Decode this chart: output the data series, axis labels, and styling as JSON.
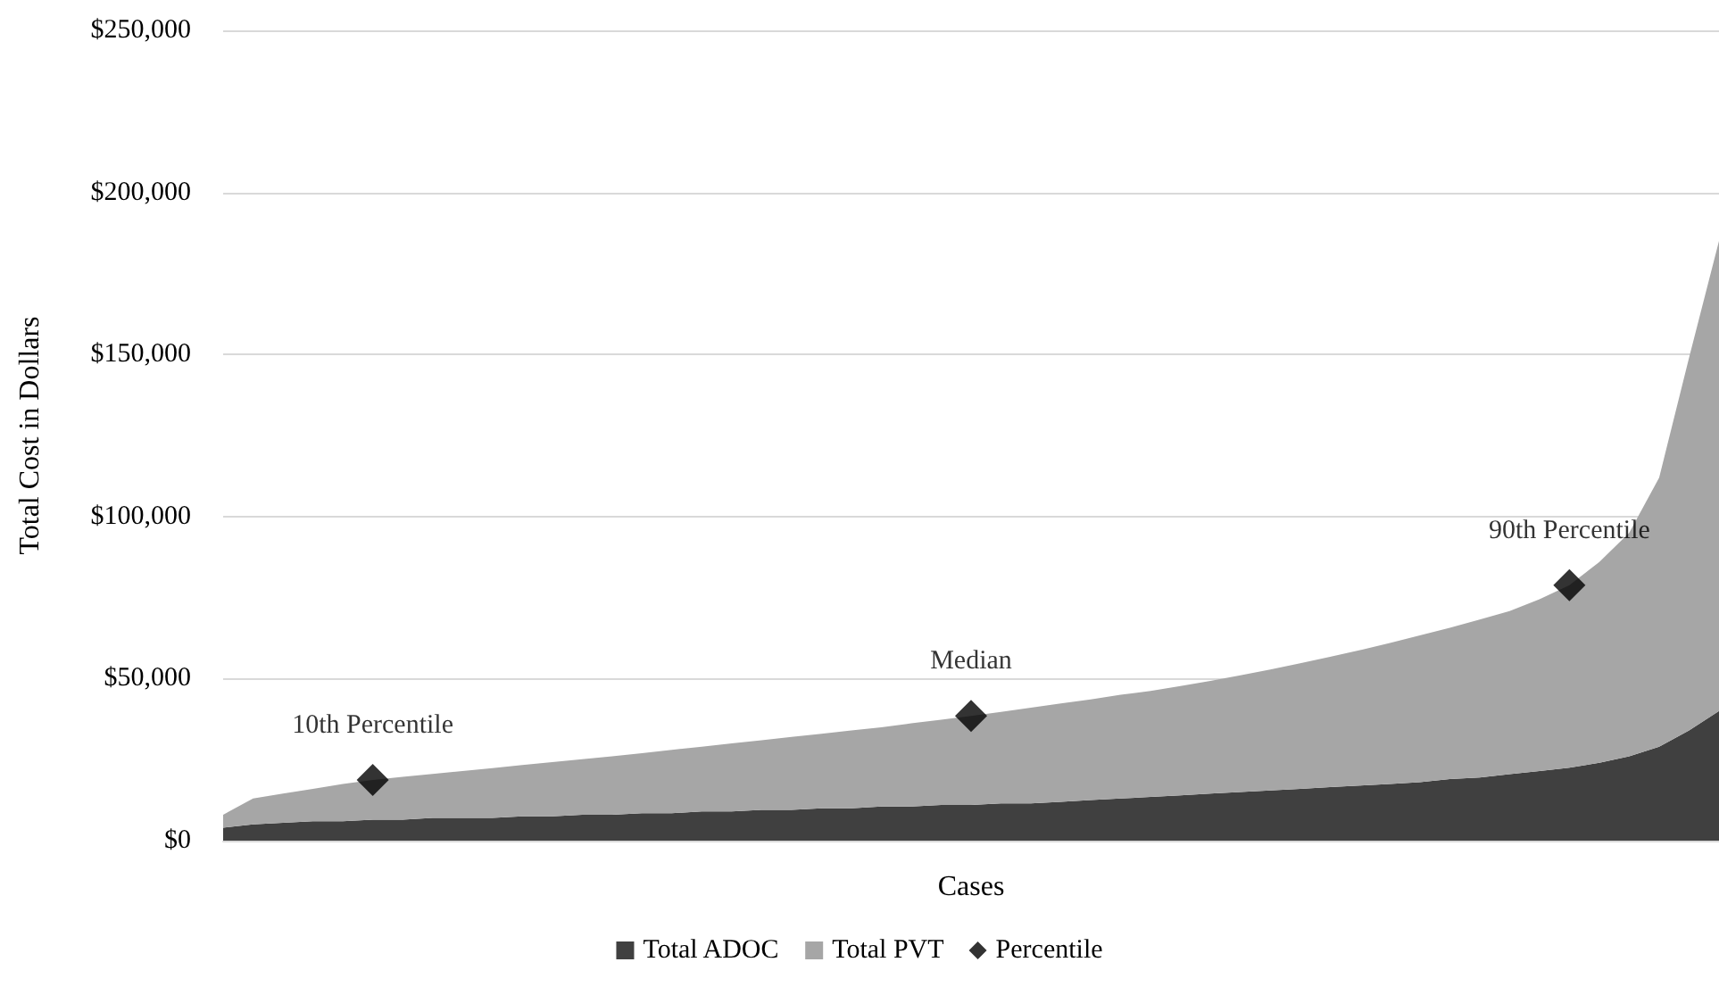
{
  "chart_data": {
    "type": "area",
    "stacked": true,
    "xlabel": "Cases",
    "ylabel": "Total Cost in Dollars",
    "categories": [
      null,
      null,
      null,
      null,
      null,
      null,
      null,
      null,
      null,
      null,
      null,
      null,
      null,
      null,
      null,
      null,
      null,
      null,
      null,
      null,
      null,
      null,
      null,
      null,
      null,
      null,
      null,
      null,
      null,
      null,
      null,
      null,
      null,
      null,
      null,
      null,
      null,
      null,
      null,
      null,
      null,
      null,
      null,
      null,
      null,
      null,
      null,
      null,
      null,
      null,
      null
    ],
    "series": [
      {
        "name": "Total ADOC",
        "color": "#404040",
        "values": [
          4000,
          5000,
          5500,
          6000,
          6000,
          6500,
          6500,
          7000,
          7000,
          7000,
          7500,
          7500,
          8000,
          8000,
          8500,
          8500,
          9000,
          9000,
          9500,
          9500,
          10000,
          10000,
          10500,
          10500,
          11000,
          11000,
          11500,
          11500,
          12000,
          12500,
          13000,
          13500,
          14000,
          14500,
          15000,
          15500,
          16000,
          16500,
          17000,
          17500,
          18000,
          19000,
          19500,
          20500,
          21500,
          22500,
          24000,
          26000,
          29000,
          34000,
          40000
        ]
      },
      {
        "name": "Total PVT",
        "color": "#a6a6a6",
        "values": [
          4000,
          8000,
          9000,
          10000,
          11500,
          12200,
          13200,
          13600,
          14500,
          15400,
          15800,
          16700,
          17100,
          18000,
          18500,
          19500,
          20000,
          21000,
          21500,
          22500,
          23000,
          24000,
          24500,
          25700,
          26300,
          27500,
          28200,
          29500,
          30300,
          31100,
          32000,
          32700,
          33700,
          34800,
          36000,
          37300,
          38700,
          40200,
          41800,
          43500,
          45300,
          46700,
          48700,
          50300,
          53000,
          56300,
          62000,
          69000,
          83000,
          115000,
          145000
        ]
      },
      {
        "name": "Percentile",
        "type": "scatter",
        "color": "#000000",
        "marker": "diamond",
        "values": [
          null,
          null,
          null,
          null,
          null,
          18700,
          null,
          null,
          null,
          null,
          null,
          null,
          null,
          null,
          null,
          null,
          null,
          null,
          null,
          null,
          null,
          null,
          null,
          null,
          null,
          38500,
          null,
          null,
          null,
          null,
          null,
          null,
          null,
          null,
          null,
          null,
          null,
          null,
          null,
          null,
          null,
          null,
          null,
          null,
          null,
          78800,
          null,
          null,
          null,
          null,
          null
        ]
      }
    ],
    "annotations": [
      {
        "text": "10th Percentile",
        "y": 18700
      },
      {
        "text": "Median",
        "y": 38500
      },
      {
        "text": "90th Percentile",
        "y": 78800
      }
    ],
    "ylim": [
      0,
      250000
    ],
    "yticks": [
      {
        "value": 0,
        "label": "$0"
      },
      {
        "value": 50000,
        "label": "$50,000"
      },
      {
        "value": 100000,
        "label": "$100,000"
      },
      {
        "value": 150000,
        "label": "$150,000"
      },
      {
        "value": 200000,
        "label": "$200,000"
      },
      {
        "value": 250000,
        "label": "$250,000"
      }
    ],
    "grid": "y",
    "legend": "bottom",
    "tick_labels": "y"
  }
}
